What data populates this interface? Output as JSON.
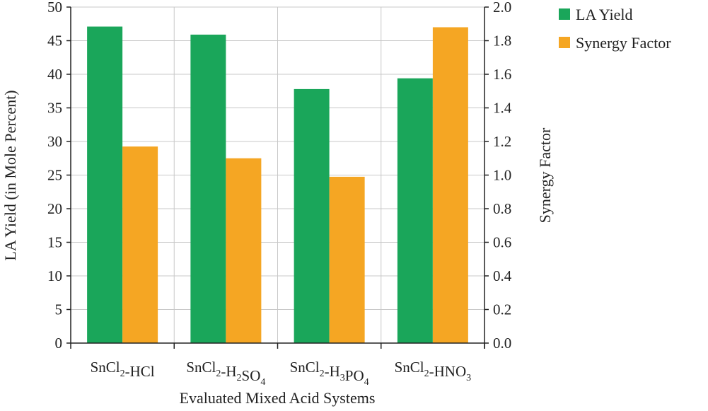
{
  "chart_data": {
    "type": "bar",
    "xlabel": "Evaluated Mixed Acid Systems",
    "ylabel_left": "LA Yield (in Mole Percent)",
    "ylabel_right": "Synergy Factor",
    "ylim_left": [
      0,
      50
    ],
    "ylim_right": [
      0,
      2.0
    ],
    "yticks_left": [
      "0",
      "5",
      "10",
      "15",
      "20",
      "25",
      "30",
      "35",
      "40",
      "45",
      "50"
    ],
    "yticks_right": [
      "0.0",
      "0.2",
      "0.4",
      "0.6",
      "0.8",
      "1.0",
      "1.2",
      "1.4",
      "1.6",
      "1.8",
      "2.0"
    ],
    "categories": [
      {
        "base": "SnCl",
        "sub1": "2",
        "mid": "-HCl",
        "sub2": "",
        "tail": "",
        "sub3": ""
      },
      {
        "base": "SnCl",
        "sub1": "2",
        "mid": "-H",
        "sub2": "2",
        "tail": "SO",
        "sub3": "4"
      },
      {
        "base": "SnCl",
        "sub1": "2",
        "mid": "-H",
        "sub2": "3",
        "tail": "PO",
        "sub3": "4"
      },
      {
        "base": "SnCl",
        "sub1": "2",
        "mid": "-HNO",
        "sub2": "3",
        "tail": "",
        "sub3": ""
      }
    ],
    "series": [
      {
        "name": "LA Yield",
        "axis": "left",
        "color": "#1aa65a",
        "values": [
          47.1,
          45.9,
          37.8,
          39.4
        ]
      },
      {
        "name": "Synergy Factor",
        "axis": "right",
        "color": "#f5a623",
        "values": [
          1.17,
          1.1,
          0.99,
          1.88
        ]
      }
    ],
    "grid": true,
    "legend_position": "top-right"
  }
}
